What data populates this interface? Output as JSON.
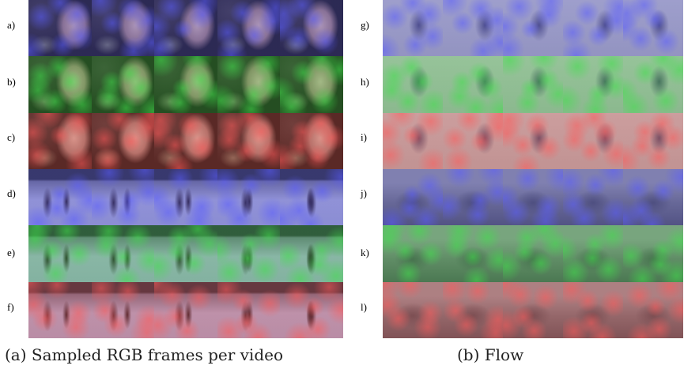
{
  "left_panel": {
    "row_labels": [
      "a)",
      "b)",
      "c)",
      "d)",
      "e)",
      "f)"
    ],
    "rows": [
      {
        "scene": "face",
        "overlay": "blue"
      },
      {
        "scene": "face",
        "overlay": "green"
      },
      {
        "scene": "face",
        "overlay": "red"
      },
      {
        "scene": "skaters",
        "overlay": "blue"
      },
      {
        "scene": "skaters",
        "overlay": "green"
      },
      {
        "scene": "skaters",
        "overlay": "red"
      }
    ],
    "frames_per_row": 5,
    "caption": "(a) Sampled RGB frames per video"
  },
  "right_panel": {
    "row_labels": [
      "g)",
      "h)",
      "i)",
      "j)",
      "k)",
      "l)"
    ],
    "rows": [
      {
        "scene": "flow-face",
        "overlay": "blue"
      },
      {
        "scene": "flow-face",
        "overlay": "green"
      },
      {
        "scene": "flow-face",
        "overlay": "red"
      },
      {
        "scene": "flow-skaters",
        "overlay": "blue"
      },
      {
        "scene": "flow-skaters",
        "overlay": "green"
      },
      {
        "scene": "flow-skaters",
        "overlay": "red"
      }
    ],
    "frames_per_row": 5,
    "caption": "(b) Flow"
  },
  "colors": {
    "blue": "#5a5cff",
    "green": "#3fe04a",
    "red": "#ff5a5a",
    "face_bg": "#1b1612",
    "skate_bg": "#7d80b8",
    "flow_face_bg": "#a9a9a9",
    "flow_skate_bg": "#6c6c70"
  }
}
